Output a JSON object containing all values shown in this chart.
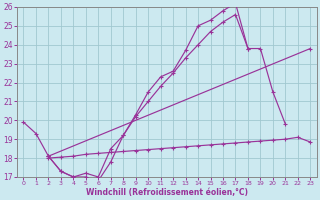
{
  "xlabel": "Windchill (Refroidissement éolien,°C)",
  "xlim": [
    -0.5,
    23.5
  ],
  "ylim": [
    17,
    26
  ],
  "yticks": [
    17,
    18,
    19,
    20,
    21,
    22,
    23,
    24,
    25,
    26
  ],
  "xticks": [
    0,
    1,
    2,
    3,
    4,
    5,
    6,
    7,
    8,
    9,
    10,
    11,
    12,
    13,
    14,
    15,
    16,
    17,
    18,
    19,
    20,
    21,
    22,
    23
  ],
  "bg_color": "#cce9f0",
  "line_color": "#993399",
  "grid_color": "#a0c8d0",
  "line1_y": [
    19.9,
    19.3,
    18.1,
    17.3,
    17.0,
    17.0,
    16.8,
    17.8,
    19.2,
    20.3,
    21.5,
    22.3,
    22.6,
    23.7,
    25.0,
    25.3,
    25.8,
    26.2,
    23.8,
    23.8,
    21.5,
    19.8,
    null,
    null
  ],
  "line2_y": [
    null,
    null,
    18.1,
    null,
    null,
    null,
    null,
    null,
    null,
    null,
    null,
    null,
    null,
    null,
    null,
    null,
    null,
    null,
    null,
    null,
    null,
    null,
    null,
    23.8
  ],
  "line3_y": [
    null,
    null,
    18.1,
    17.3,
    17.0,
    17.2,
    17.0,
    18.5,
    19.2,
    20.2,
    21.0,
    21.8,
    22.5,
    23.3,
    24.0,
    24.7,
    25.2,
    25.6,
    23.8,
    null,
    null,
    null,
    null,
    null
  ],
  "line4_y": [
    null,
    null,
    18.0,
    18.05,
    18.1,
    18.2,
    18.25,
    18.3,
    18.35,
    18.4,
    18.45,
    18.5,
    18.55,
    18.6,
    18.65,
    18.7,
    18.75,
    18.8,
    18.85,
    18.9,
    18.95,
    19.0,
    19.1,
    18.85
  ]
}
